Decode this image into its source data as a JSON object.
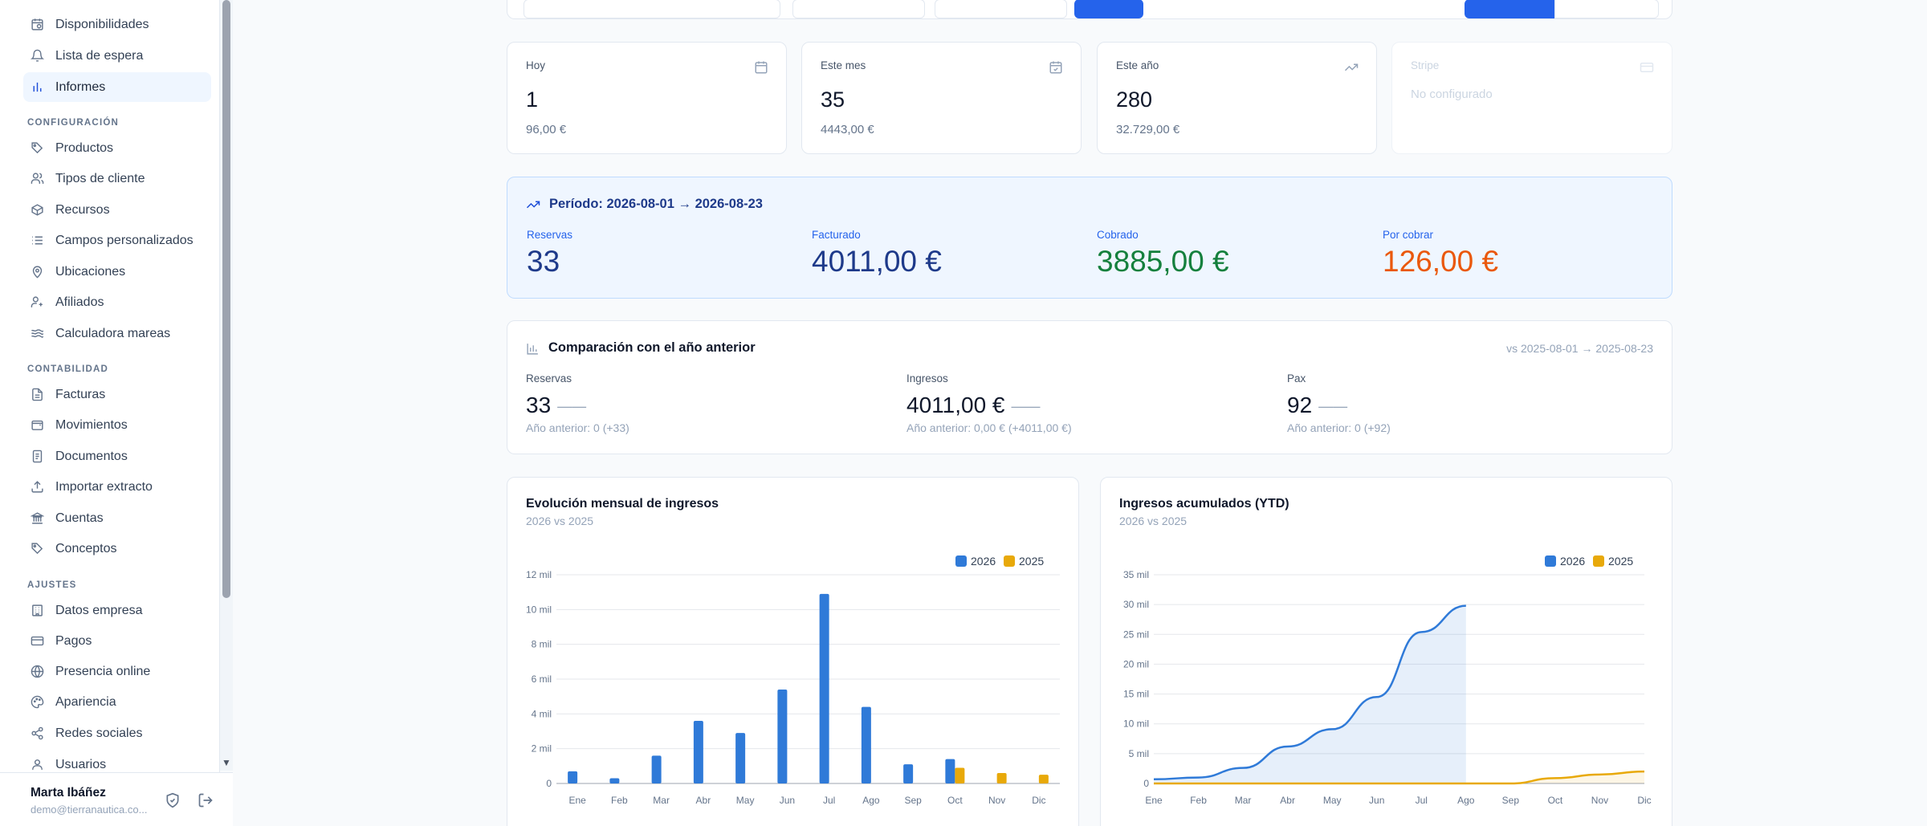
{
  "sidebar": {
    "items": [
      {
        "label": "Disponibilidades",
        "icon": "calendar-clock-icon"
      },
      {
        "label": "Lista de espera",
        "icon": "bell-icon"
      },
      {
        "label": "Informes",
        "icon": "bar-chart-icon",
        "active": true
      },
      {
        "label": "Productos",
        "icon": "tag-icon"
      },
      {
        "label": "Tipos de cliente",
        "icon": "users-icon"
      },
      {
        "label": "Recursos",
        "icon": "box-icon"
      },
      {
        "label": "Campos personalizados",
        "icon": "list-icon"
      },
      {
        "label": "Ubicaciones",
        "icon": "map-pin-icon"
      },
      {
        "label": "Afiliados",
        "icon": "user-plus-icon"
      },
      {
        "label": "Calculadora mareas",
        "icon": "waves-icon"
      },
      {
        "label": "Facturas",
        "icon": "file-text-icon"
      },
      {
        "label": "Movimientos",
        "icon": "wallet-icon"
      },
      {
        "label": "Documentos",
        "icon": "file-icon"
      },
      {
        "label": "Importar extracto",
        "icon": "upload-icon"
      },
      {
        "label": "Cuentas",
        "icon": "bank-icon"
      },
      {
        "label": "Conceptos",
        "icon": "tags-icon"
      },
      {
        "label": "Datos empresa",
        "icon": "building-icon"
      },
      {
        "label": "Pagos",
        "icon": "credit-card-icon"
      },
      {
        "label": "Presencia online",
        "icon": "globe-icon"
      },
      {
        "label": "Apariencia",
        "icon": "palette-icon"
      },
      {
        "label": "Redes sociales",
        "icon": "share-icon"
      },
      {
        "label": "Usuarios",
        "icon": "user-icon"
      }
    ],
    "sections": {
      "configuracion": "CONFIGURACIÓN",
      "contabilidad": "CONTABILIDAD",
      "ajustes": "AJUSTES"
    },
    "user": {
      "name": "Marta Ibáñez",
      "email": "demo@tierranautica.co..."
    }
  },
  "stats": [
    {
      "label": "Hoy",
      "value": "1",
      "sub": "96,00 €",
      "icon": "calendar-icon"
    },
    {
      "label": "Este mes",
      "value": "35",
      "sub": "4443,00 €",
      "icon": "calendar-check-icon"
    },
    {
      "label": "Este año",
      "value": "280",
      "sub": "32.729,00 €",
      "icon": "trending-up-icon"
    },
    {
      "label": "Stripe",
      "value": "",
      "sub": "No configurado",
      "icon": "credit-card-icon"
    }
  ],
  "period": {
    "title": "Período: 2026-08-01 → 2026-08-23",
    "kpis": [
      {
        "label": "Reservas",
        "value": "33",
        "color": "#1e3a8a"
      },
      {
        "label": "Facturado",
        "value": "4011,00 €",
        "color": "#1e3a8a"
      },
      {
        "label": "Cobrado",
        "value": "3885,00 €",
        "color": "#15803d"
      },
      {
        "label": "Por cobrar",
        "value": "126,00 €",
        "color": "#ea580c"
      }
    ]
  },
  "comparison": {
    "title": "Comparación con el año anterior",
    "range": "vs 2025-08-01 → 2025-08-23",
    "metrics": [
      {
        "label": "Reservas",
        "value": "33",
        "dash": "——",
        "prev": "Año anterior: 0 (+33)"
      },
      {
        "label": "Ingresos",
        "value": "4011,00 €",
        "dash": "——",
        "prev": "Año anterior: 0,00 € (+4011,00 €)"
      },
      {
        "label": "Pax",
        "value": "92",
        "dash": "——",
        "prev": "Año anterior: 0 (+92)"
      }
    ]
  },
  "colors": {
    "series_2026": "#2f7ad8",
    "series_2025": "#e8a90a"
  },
  "chart_data": [
    {
      "type": "bar",
      "title": "Evolución mensual de ingresos",
      "subtitle": "2026 vs 2025",
      "categories": [
        "Ene",
        "Feb",
        "Mar",
        "Abr",
        "May",
        "Jun",
        "Jul",
        "Ago",
        "Sep",
        "Oct",
        "Nov",
        "Dic"
      ],
      "series": [
        {
          "name": "2026",
          "values": [
            700,
            300,
            1600,
            3600,
            2900,
            5400,
            10900,
            4400,
            1100,
            1400,
            0,
            0
          ]
        },
        {
          "name": "2025",
          "values": [
            0,
            0,
            0,
            0,
            0,
            0,
            0,
            0,
            0,
            900,
            600,
            500
          ]
        }
      ],
      "yticks": [
        "0",
        "2 mil",
        "4 mil",
        "6 mil",
        "8 mil",
        "10 mil",
        "12 mil"
      ],
      "ylim": [
        0,
        12000
      ],
      "legend": "top-right",
      "grid": true
    },
    {
      "type": "area",
      "title": "Ingresos acumulados (YTD)",
      "subtitle": "2026 vs 2025",
      "categories": [
        "Ene",
        "Feb",
        "Mar",
        "Abr",
        "May",
        "Jun",
        "Jul",
        "Ago",
        "Sep",
        "Oct",
        "Nov",
        "Dic"
      ],
      "series": [
        {
          "name": "2026",
          "values": [
            700,
            1000,
            2600,
            6200,
            9100,
            14500,
            25400,
            29800,
            null,
            null,
            null,
            null
          ]
        },
        {
          "name": "2025",
          "values": [
            0,
            0,
            0,
            0,
            0,
            0,
            0,
            0,
            0,
            900,
            1500,
            2000
          ]
        }
      ],
      "yticks": [
        "0",
        "5 mil",
        "10 mil",
        "15 mil",
        "20 mil",
        "25 mil",
        "30 mil",
        "35 mil"
      ],
      "ylim": [
        0,
        35000
      ],
      "legend": "top-right",
      "grid": true
    }
  ]
}
